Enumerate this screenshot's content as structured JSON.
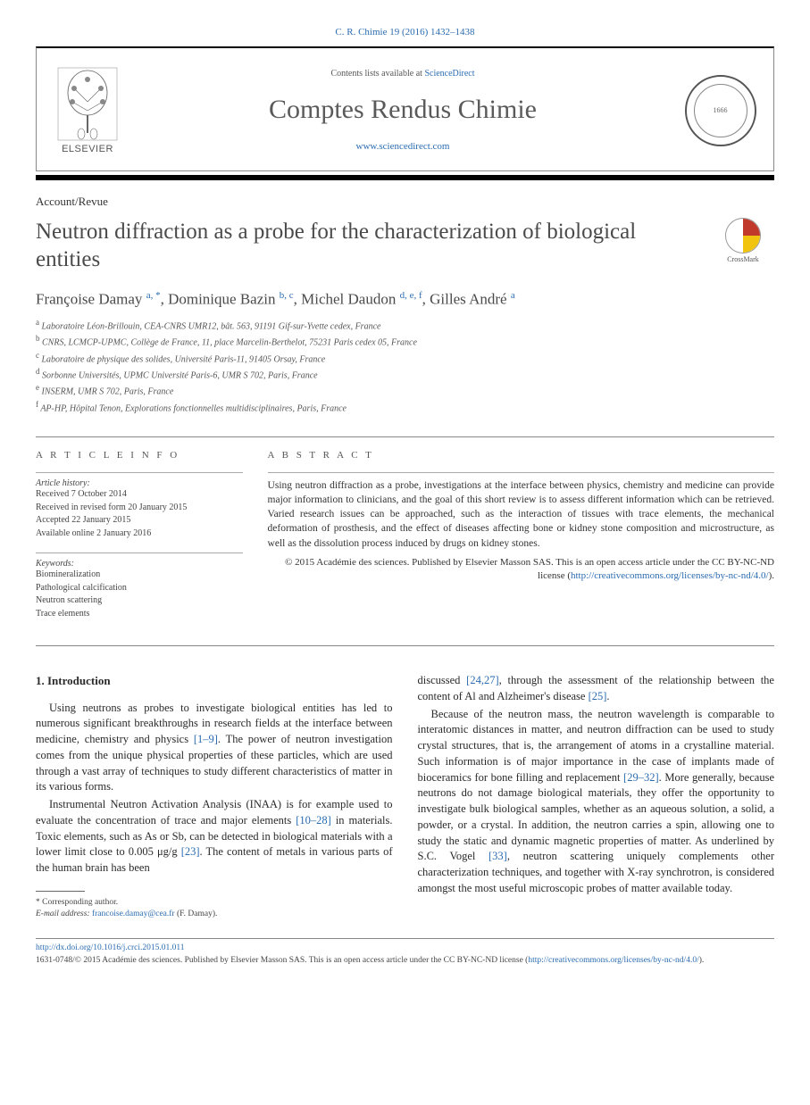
{
  "citation": "C. R. Chimie 19 (2016) 1432–1438",
  "header": {
    "contents_prefix": "Contents lists available at ",
    "contents_link": "ScienceDirect",
    "journal_name": "Comptes Rendus Chimie",
    "journal_url": "www.sciencedirect.com",
    "publisher": "ELSEVIER",
    "seal_year": "1666"
  },
  "article_type": "Account/Revue",
  "title": "Neutron diffraction as a probe for the characterization of biological entities",
  "crossmark_label": "CrossMark",
  "authors_html": "Françoise Damay <sup>a, *</sup>, Dominique Bazin <sup>b, c</sup>, Michel Daudon <sup>d, e, f</sup>, Gilles André <sup>a</sup>",
  "affiliations": [
    "a Laboratoire Léon-Brillouin, CEA-CNRS UMR12, bât. 563, 91191 Gif-sur-Yvette cedex, France",
    "b CNRS, LCMCP-UPMC, Collège de France, 11, place Marcelin-Berthelot, 75231 Paris cedex 05, France",
    "c Laboratoire de physique des solides, Université Paris-11, 91405 Orsay, France",
    "d Sorbonne Universités, UPMC Université Paris-6, UMR S 702, Paris, France",
    "e INSERM, UMR S 702, Paris, France",
    "f AP-HP, Hôpital Tenon, Explorations fonctionnelles multidisciplinaires, Paris, France"
  ],
  "info": {
    "heading": "A R T I C L E  I N F O",
    "history_label": "Article history:",
    "history": [
      "Received 7 October 2014",
      "Received in revised form 20 January 2015",
      "Accepted 22 January 2015",
      "Available online 2 January 2016"
    ],
    "keywords_label": "Keywords:",
    "keywords": [
      "Biomineralization",
      "Pathological calcification",
      "Neutron scattering",
      "Trace elements"
    ]
  },
  "abstract": {
    "heading": "A B S T R A C T",
    "text": "Using neutron diffraction as a probe, investigations at the interface between physics, chemistry and medicine can provide major information to clinicians, and the goal of this short review is to assess different information which can be retrieved. Varied research issues can be approached, such as the interaction of tissues with trace elements, the mechanical deformation of prosthesis, and the effect of diseases affecting bone or kidney stone composition and microstructure, as well as the dissolution process induced by drugs on kidney stones.",
    "copyright": "© 2015 Académie des sciences. Published by Elsevier Masson SAS. This is an open access article under the CC BY-NC-ND license (",
    "license_url": "http://creativecommons.org/licenses/by-nc-nd/4.0/",
    "copyright_suffix": ")."
  },
  "body": {
    "section_num": "1.",
    "section_title": "Introduction",
    "left": {
      "p1": "Using neutrons as probes to investigate biological entities has led to numerous significant breakthroughs in research fields at the interface between medicine, chemistry and physics ",
      "p1_ref": "[1–9]",
      "p1_cont": ". The power of neutron investigation comes from the unique physical properties of these particles, which are used through a vast array of techniques to study different characteristics of matter in its various forms.",
      "p2a": "Instrumental Neutron Activation Analysis (INAA) is for example used to evaluate the concentration of trace and major elements ",
      "p2_ref1": "[10–28]",
      "p2b": " in materials. Toxic elements, such as As or Sb, can be detected in biological materials with a lower limit close to 0.005 μg/g ",
      "p2_ref2": "[23]",
      "p2c": ". The content of metals in various parts of the human brain has been"
    },
    "right": {
      "p1a": "discussed ",
      "p1_ref1": "[24,27]",
      "p1b": ", through the assessment of the relationship between the content of Al and Alzheimer's disease ",
      "p1_ref2": "[25]",
      "p1c": ".",
      "p2a": "Because of the neutron mass, the neutron wavelength is comparable to interatomic distances in matter, and neutron diffraction can be used to study crystal structures, that is, the arrangement of atoms in a crystalline material. Such information is of major importance in the case of implants made of bioceramics for bone filling and replacement ",
      "p2_ref1": "[29–32]",
      "p2b": ". More generally, because neutrons do not damage biological materials, they offer the opportunity to investigate bulk biological samples, whether as an aqueous solution, a solid, a powder, or a crystal. In addition, the neutron carries a spin, allowing one to study the static and dynamic magnetic properties of matter. As underlined by S.C. Vogel ",
      "p2_ref2": "[33]",
      "p2c": ", neutron scattering uniquely complements other characterization techniques, and together with X-ray synchrotron, is considered amongst the most useful microscopic probes of matter available today."
    }
  },
  "footnotes": {
    "corr": "* Corresponding author.",
    "email_label": "E-mail address:",
    "email": "francoise.damay@cea.fr",
    "email_name": "(F. Damay)."
  },
  "bottom": {
    "doi": "http://dx.doi.org/10.1016/j.crci.2015.01.011",
    "issn_line": "1631-0748/© 2015 Académie des sciences. Published by Elsevier Masson SAS. This is an open access article under the CC BY-NC-ND license (",
    "license_url": "http://creativecommons.org/licenses/by-nc-nd/4.0/",
    "suffix": ")."
  }
}
